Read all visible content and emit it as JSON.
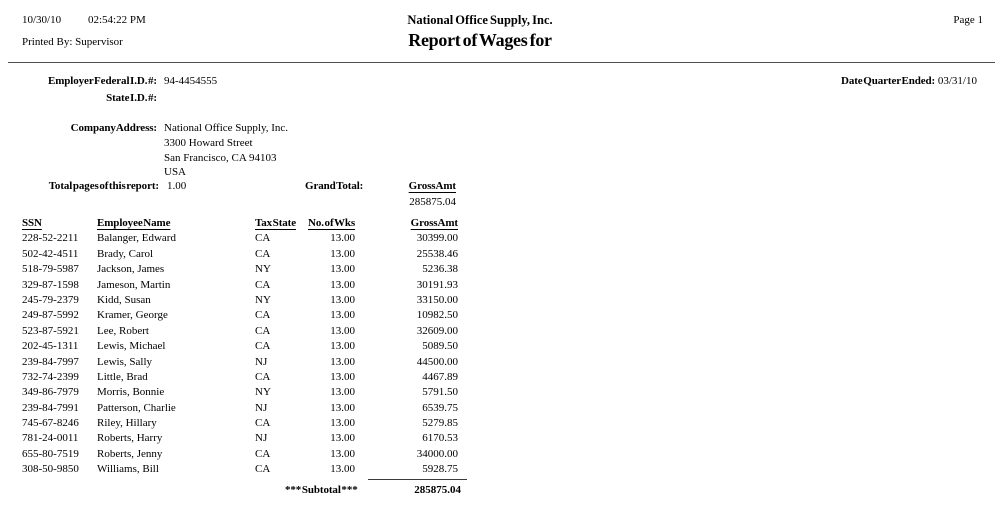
{
  "header": {
    "date": "10/30/10",
    "time": "02:54:22 PM",
    "printed_by_label": "Printed By:",
    "printed_by": "Supervisor",
    "company": "National Office Supply, Inc.",
    "title": "Report of Wages for",
    "page": "Page 1"
  },
  "employer": {
    "federal_id_label": "Employer Federal I.D. #:",
    "federal_id": "94-4454555",
    "state_id_label": "State I.D. #:",
    "state_id": "",
    "quarter_label": "Date Quarter Ended:",
    "quarter_ended": "03/31/10"
  },
  "company_info": {
    "address_label": "Company Address:",
    "address_lines": [
      "National Office Supply, Inc.",
      "3300 Howard Street",
      "San Francisco, CA 94103",
      "USA"
    ],
    "total_pages_label": "Total pages of this report:",
    "total_pages": "1.00",
    "grand_total_label": "Grand Total:",
    "grand_total_column": "Gross Amt",
    "grand_total_value": "285875.04"
  },
  "table": {
    "columns": [
      "SSN",
      "Employee Name",
      "Tax State",
      "No. of Wks",
      "Gross Amt"
    ],
    "rows": [
      [
        "228-52-2211",
        "Balanger, Edward",
        "CA",
        "13.00",
        "30399.00"
      ],
      [
        "502-42-4511",
        "Brady, Carol",
        "CA",
        "13.00",
        "25538.46"
      ],
      [
        "518-79-5987",
        "Jackson, James",
        "NY",
        "13.00",
        "5236.38"
      ],
      [
        "329-87-1598",
        "Jameson, Martin",
        "CA",
        "13.00",
        "30191.93"
      ],
      [
        "245-79-2379",
        "Kidd, Susan",
        "NY",
        "13.00",
        "33150.00"
      ],
      [
        "249-87-5992",
        "Kramer, George",
        "CA",
        "13.00",
        "10982.50"
      ],
      [
        "523-87-5921",
        "Lee, Robert",
        "CA",
        "13.00",
        "32609.00"
      ],
      [
        "202-45-1311",
        "Lewis, Michael",
        "CA",
        "13.00",
        "5089.50"
      ],
      [
        "239-84-7997",
        "Lewis, Sally",
        "NJ",
        "13.00",
        "44500.00"
      ],
      [
        "732-74-2399",
        "Little, Brad",
        "CA",
        "13.00",
        "4467.89"
      ],
      [
        "349-86-7979",
        "Morris, Bonnie",
        "NY",
        "13.00",
        "5791.50"
      ],
      [
        "239-84-7991",
        "Patterson, Charlie",
        "NJ",
        "13.00",
        "6539.75"
      ],
      [
        "745-67-8246",
        "Riley, Hillary",
        "CA",
        "13.00",
        "5279.85"
      ],
      [
        "781-24-0011",
        "Roberts, Harry",
        "NJ",
        "13.00",
        "6170.53"
      ],
      [
        "655-80-7519",
        "Roberts, Jenny",
        "CA",
        "13.00",
        "34000.00"
      ],
      [
        "308-50-9850",
        "Williams, Bill",
        "CA",
        "13.00",
        "5928.75"
      ]
    ],
    "subtotal_label": "*** Subtotal ***",
    "subtotal_value": "285875.04"
  }
}
